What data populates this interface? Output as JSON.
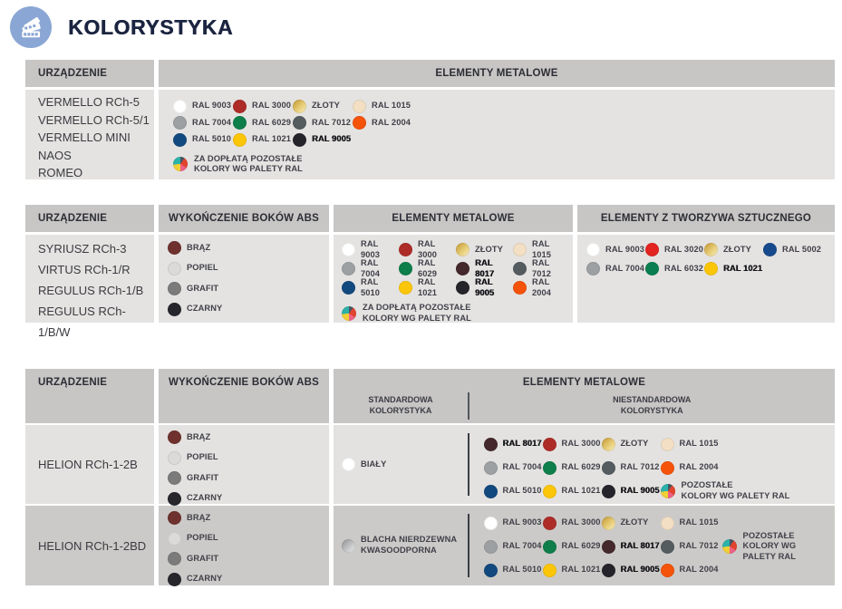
{
  "page": {
    "title": "KOLORYSTYKA"
  },
  "specials": {
    "gold": [
      "#c2952f",
      "#e7cd77",
      "#f8efc6"
    ],
    "steel": [
      "#8f9295",
      "#eceded"
    ],
    "rainbow": [
      "#4a5560",
      "#e2452f",
      "#ee6286",
      "#f2cf35",
      "#2cb2aa"
    ]
  },
  "headers": {
    "device": "URZĄDZENIE",
    "abs": "WYKOŃCZENIE BOKÓW ABS",
    "metal": "ELEMENTY METALOWE",
    "plastic": "ELEMENTY Z TWORZYWA SZTUCZNEGO",
    "standard": "STANDARDOWA\nKOLORYSTYKA",
    "nonstandard": "NIESTANDARDOWA\nKOLORYSTYKA"
  },
  "tables": {
    "t1": {
      "devices": [
        "VERMELLO RCh-5",
        "VERMELLO RCh-5/1",
        "VERMELLO MINI",
        "NAOS",
        "ROMEO"
      ],
      "metal": [
        {
          "label": "RAL 9003",
          "color": "#ffffff"
        },
        {
          "label": "RAL 3000",
          "color": "#ae2c28"
        },
        {
          "label": "ZŁOTY",
          "color": "gold"
        },
        {
          "label": "RAL 1015",
          "color": "#f2dfc4"
        },
        {
          "label": "RAL 7004",
          "color": "#9ca0a3"
        },
        {
          "label": "RAL 6029",
          "color": "#0e7e4a"
        },
        {
          "label": "RAL 7012",
          "color": "#545c60"
        },
        {
          "label": "RAL 2004",
          "color": "#f6530a"
        },
        {
          "label": "RAL 5010",
          "color": "#12497f"
        },
        {
          "label": "RAL 1021",
          "color": "#fcc608"
        },
        {
          "label": "RAL 9005",
          "color": "#26242b",
          "bold": true
        }
      ],
      "note": [
        {
          "type": "note",
          "color": "rainbow",
          "label": "ZA DOPŁATĄ POZOSTAŁE\nKOLORY WG PALETY RAL"
        }
      ]
    },
    "t2": {
      "devices": [
        "SYRIUSZ RCh-3",
        "VIRTUS RCh-1/R",
        "REGULUS RCh-1/B",
        "REGULUS RCh-1/B/W"
      ],
      "abs": [
        {
          "label": "BRĄZ",
          "color": "#6f312d"
        },
        {
          "label": "POPIEL",
          "color": "#dbdad8"
        },
        {
          "label": "GRAFIT",
          "color": "#7b7b7b"
        },
        {
          "label": "CZARNY",
          "color": "#27262d"
        }
      ],
      "metal": [
        {
          "label": "RAL 9003",
          "color": "#ffffff"
        },
        {
          "label": "RAL 3000",
          "color": "#ae2c28"
        },
        {
          "label": "ZŁOTY",
          "color": "gold"
        },
        {
          "label": "RAL 1015",
          "color": "#f2dfc4"
        },
        {
          "label": "RAL 7004",
          "color": "#9ca0a3"
        },
        {
          "label": "RAL 6029",
          "color": "#0e7e4a"
        },
        {
          "label": "RAL 8017",
          "color": "#44282b",
          "bold": true
        },
        {
          "label": "RAL 7012",
          "color": "#545c60"
        },
        {
          "label": "RAL 5010",
          "color": "#12497f"
        },
        {
          "label": "RAL 1021",
          "color": "#fcc608"
        },
        {
          "label": "RAL 9005",
          "color": "#26242b",
          "bold": true
        },
        {
          "label": "RAL 2004",
          "color": "#f6530a"
        }
      ],
      "metal_note": [
        {
          "type": "note",
          "color": "rainbow",
          "label": "ZA DOPŁATĄ POZOSTAŁE\nKOLORY WG PALETY RAL"
        }
      ],
      "plastic": [
        {
          "label": "RAL 9003",
          "color": "#ffffff"
        },
        {
          "label": "RAL 3020",
          "color": "#e32421"
        },
        {
          "label": "ZŁOTY",
          "color": "gold"
        },
        {
          "label": "RAL 5002",
          "color": "#174a8c"
        },
        {
          "label": "RAL 7004",
          "color": "#9ca0a3"
        },
        {
          "label": "RAL 6032",
          "color": "#0a7e50"
        },
        {
          "label": "RAL 1021",
          "color": "#fcc608",
          "bold": true
        }
      ]
    },
    "t3": {
      "rows": [
        {
          "device": "HELION RCh-1-2B",
          "abs": [
            {
              "label": "BRĄZ",
              "color": "#6f312d"
            },
            {
              "label": "POPIEL",
              "color": "#dbdad8"
            },
            {
              "label": "GRAFIT",
              "color": "#7b7b7b"
            },
            {
              "label": "CZARNY",
              "color": "#27262d"
            }
          ],
          "standard": [
            {
              "label": "BIAŁY",
              "color": "#ffffff"
            }
          ],
          "nonstandard": [
            {
              "label": "RAL 8017",
              "color": "#44282b",
              "bold": true
            },
            {
              "label": "RAL 3000",
              "color": "#ae2c28"
            },
            {
              "label": "ZŁOTY",
              "color": "gold"
            },
            {
              "label": "RAL 1015",
              "color": "#f2dfc4"
            },
            {
              "label": "RAL 7004",
              "color": "#9ca0a3"
            },
            {
              "label": "RAL 6029",
              "color": "#0e7e4a"
            },
            {
              "label": "RAL 7012",
              "color": "#545c60"
            },
            {
              "label": "RAL 2004",
              "color": "#f6530a"
            },
            {
              "label": "RAL 5010",
              "color": "#12497f"
            },
            {
              "label": "RAL 1021",
              "color": "#fcc608"
            },
            {
              "label": "RAL 9005",
              "color": "#26242b",
              "bold": true
            },
            {
              "type": "note",
              "color": "rainbow",
              "label": "POZOSTAŁE\nKOLORY WG PALETY RAL"
            }
          ]
        },
        {
          "device": "HELION RCh-1-2BD",
          "abs": [
            {
              "label": "BRĄZ",
              "color": "#6f312d"
            },
            {
              "label": "POPIEL",
              "color": "#dbdad8"
            },
            {
              "label": "GRAFIT",
              "color": "#7b7b7b"
            },
            {
              "label": "CZARNY",
              "color": "#27262d"
            }
          ],
          "standard": [
            {
              "label": "BLACHA NIERDZEWNA\nKWASOODPORNA",
              "color": "steel"
            }
          ],
          "nonstandard": [
            {
              "label": "RAL 9003",
              "color": "#ffffff"
            },
            {
              "label": "RAL 3000",
              "color": "#ae2c28"
            },
            {
              "label": "ZŁOTY",
              "color": "gold"
            },
            {
              "label": "RAL 1015",
              "color": "#f2dfc4"
            },
            {
              "label": "RAL 7004",
              "color": "#9ca0a3"
            },
            {
              "label": "RAL 6029",
              "color": "#0e7e4a"
            },
            {
              "label": "RAL 8017",
              "color": "#44282b",
              "bold": true
            },
            {
              "label": "RAL 7012",
              "color": "#545c60"
            },
            {
              "label": "RAL 5010",
              "color": "#12497f"
            },
            {
              "label": "RAL 1021",
              "color": "#fcc608"
            },
            {
              "label": "RAL 9005",
              "color": "#26242b",
              "bold": true
            },
            {
              "label": "RAL 2004",
              "color": "#f6530a"
            }
          ],
          "side_note": [
            {
              "type": "note",
              "color": "rainbow",
              "label": "POZOSTAŁE\nKOLORY WG\nPALETY RAL"
            }
          ]
        }
      ]
    }
  }
}
